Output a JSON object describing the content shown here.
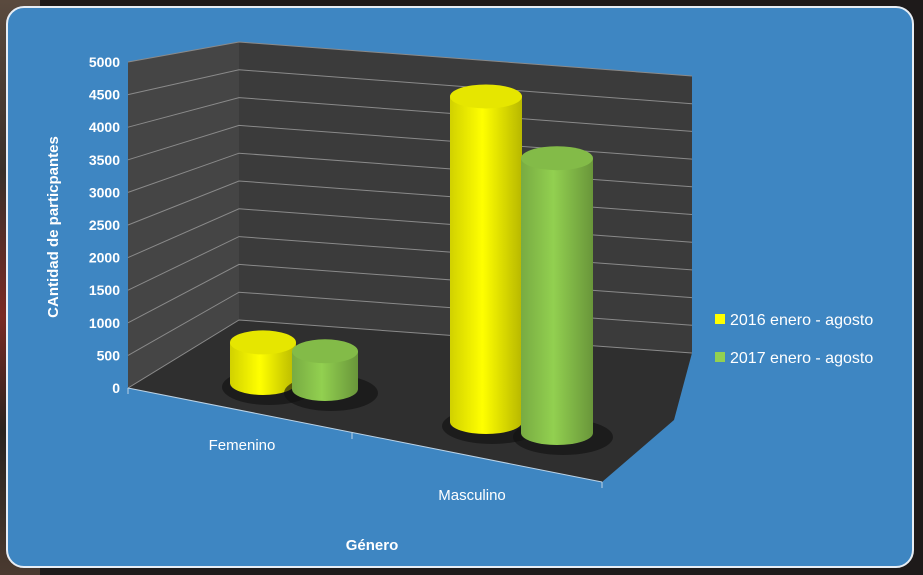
{
  "chart_data": {
    "type": "bar",
    "style": "3d-cylinder",
    "categories": [
      "Femenino",
      "Masculino"
    ],
    "series": [
      {
        "name": "2016 enero - agosto",
        "values": [
          560,
          4490
        ],
        "color": "#ffff00"
      },
      {
        "name": "2017 enero - agosto",
        "values": [
          520,
          3790
        ],
        "color": "#92d050"
      }
    ],
    "xlabel": "Género",
    "ylabel": "CAntidad de particpantes",
    "ylim": [
      0,
      5000
    ],
    "yticks": [
      0,
      500,
      1000,
      1500,
      2000,
      2500,
      3000,
      3500,
      4000,
      4500,
      5000
    ],
    "grid": true,
    "legend_position": "right"
  },
  "colors": {
    "background": "#3e86c2",
    "wall": "#3b3b3b",
    "floor": "#2f2f2f",
    "gridline": "#8a8a8a"
  }
}
